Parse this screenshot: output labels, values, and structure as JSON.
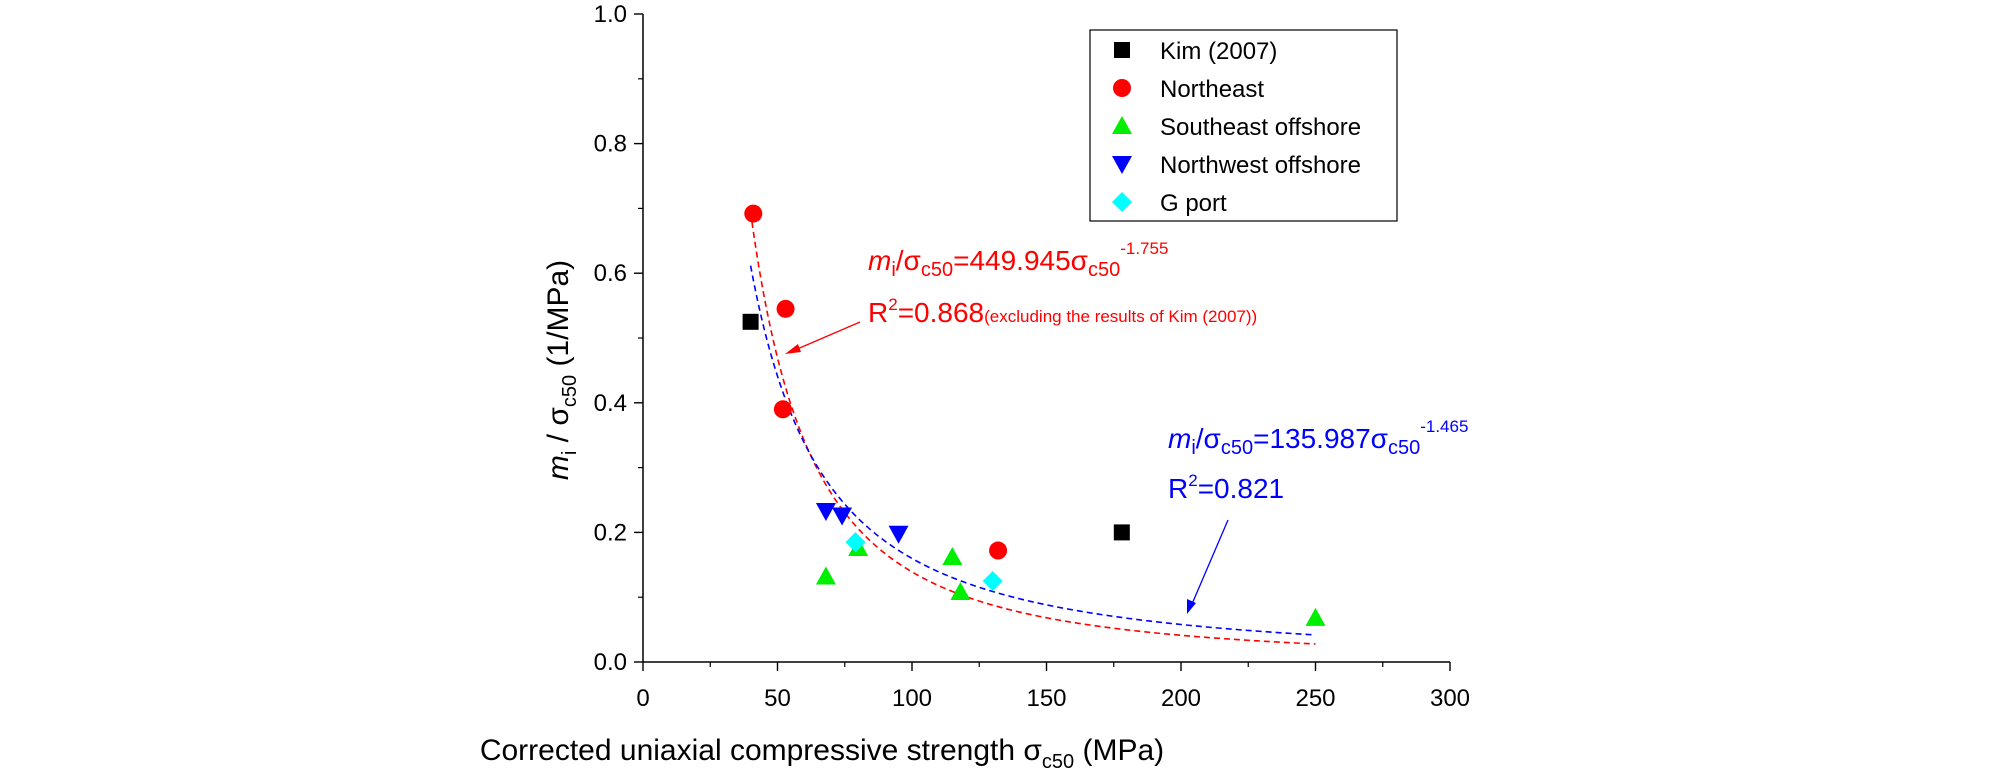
{
  "chart_data": {
    "type": "scatter",
    "xlabel": {
      "main": "Corrected uniaxial compressive strength σ",
      "sub": "c50",
      "unit": " (MPa)"
    },
    "ylabel": {
      "m": "m",
      "m_sub": "i",
      "mid": " / σ",
      "sub": "c50",
      "unit": " (1/MPa)"
    },
    "xlim": [
      0,
      300
    ],
    "ylim": [
      0,
      1.0
    ],
    "xticks": [
      0,
      50,
      100,
      150,
      200,
      250,
      300
    ],
    "yticks": [
      0.0,
      0.2,
      0.4,
      0.6,
      0.8,
      1.0
    ],
    "xtick_labels": [
      "0",
      "50",
      "100",
      "150",
      "200",
      "250",
      "300"
    ],
    "ytick_labels": [
      "0.0",
      "0.2",
      "0.4",
      "0.6",
      "0.8",
      "1.0"
    ],
    "series": [
      {
        "name": "Kim (2007)",
        "marker": "square",
        "color": "#000000",
        "points": [
          [
            40,
            0.525
          ],
          [
            178,
            0.2
          ]
        ]
      },
      {
        "name": "Northeast",
        "marker": "circle",
        "color": "#ff0000",
        "points": [
          [
            41,
            0.692
          ],
          [
            53,
            0.545
          ],
          [
            52,
            0.39
          ],
          [
            132,
            0.172
          ]
        ]
      },
      {
        "name": "Southeast offshore",
        "marker": "triangle-up",
        "color": "#00ee00",
        "points": [
          [
            68,
            0.132
          ],
          [
            80,
            0.176
          ],
          [
            115,
            0.162
          ],
          [
            118,
            0.108
          ],
          [
            250,
            0.068
          ]
        ]
      },
      {
        "name": "Northwest offshore",
        "marker": "triangle-down",
        "color": "#0000ff",
        "points": [
          [
            68,
            0.233
          ],
          [
            74,
            0.226
          ],
          [
            95,
            0.198
          ]
        ]
      },
      {
        "name": "G port",
        "marker": "diamond",
        "color": "#00ffff",
        "points": [
          [
            79,
            0.185
          ],
          [
            130,
            0.125
          ]
        ]
      }
    ],
    "fits": [
      {
        "name": "red-fit",
        "color": "#ff0000",
        "a": 449.945,
        "b": -1.755,
        "x_range": [
          40,
          250
        ]
      },
      {
        "name": "blue-fit",
        "color": "#0000ff",
        "a": 135.987,
        "b": -1.465,
        "x_range": [
          40,
          250
        ]
      }
    ],
    "annotations": {
      "red_eq": {
        "m": "m",
        "m_sub": "i",
        "s1": "/σ",
        "sub1": "c50",
        "eq": "=449.945σ",
        "sub2": "c50",
        "sup": "-1.755"
      },
      "red_r2": {
        "r": "R",
        "sup": "2",
        "val": "=0.868",
        "note": "(excluding the results of Kim (2007))"
      },
      "blue_eq": {
        "m": "m",
        "m_sub": "i",
        "s1": "/σ",
        "sub1": "c50",
        "eq": "=135.987σ",
        "sub2": "c50",
        "sup": "-1.465"
      },
      "blue_r2": {
        "r": "R",
        "sup": "2",
        "val": "=0.821"
      }
    },
    "legend_position": "top-right"
  }
}
